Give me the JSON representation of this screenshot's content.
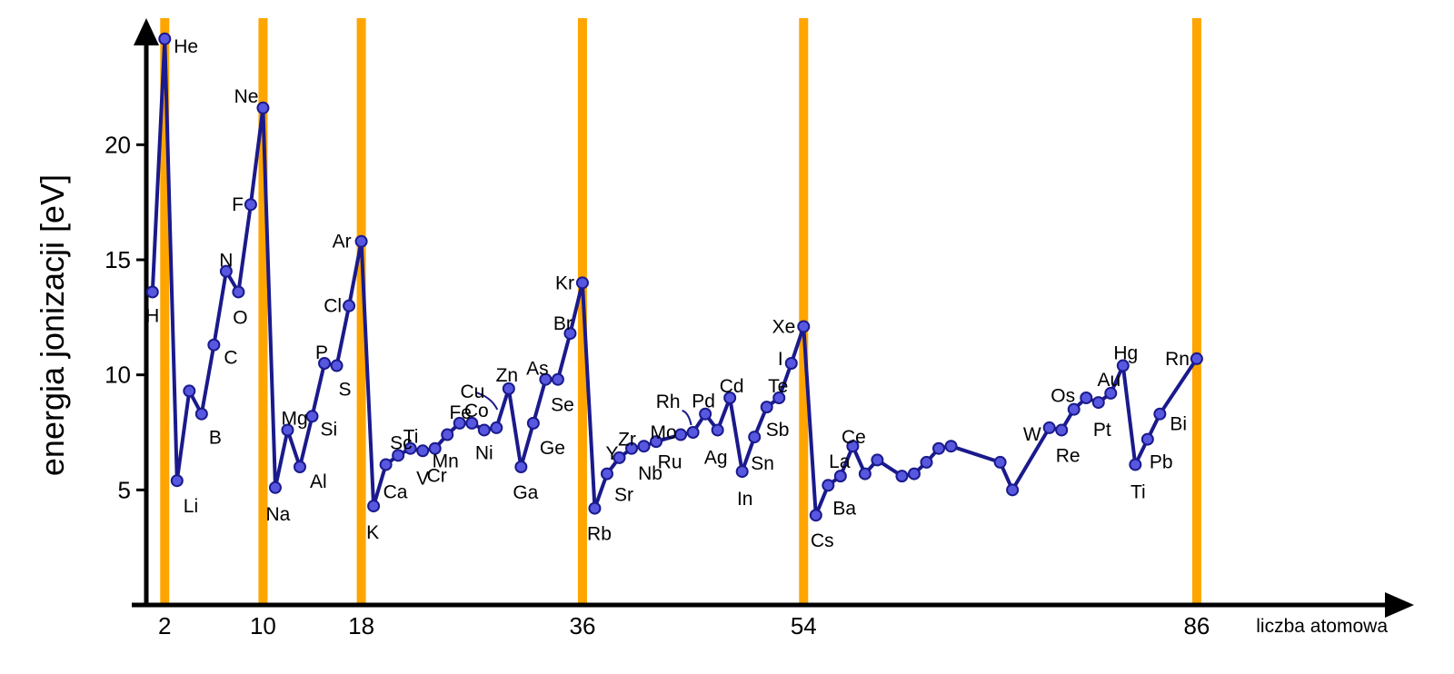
{
  "chart_data": {
    "type": "line",
    "title": "",
    "xlabel": "liczba atomowa",
    "ylabel": "energia jonizacji [eV]",
    "ylim": [
      0,
      25.5
    ],
    "xlim": [
      0.5,
      102.5
    ],
    "y_ticks": [
      "5",
      "10",
      "15",
      "20"
    ],
    "x_ticks": [
      "2",
      "10",
      "18",
      "36",
      "54",
      "86"
    ],
    "highlight_x": [
      2,
      10,
      18,
      36,
      54,
      86
    ],
    "highlight_color": "#ffa500",
    "line_color": "#1a1a8c",
    "marker_fill": "#5757e0",
    "series": [
      {
        "points": [
          {
            "x": 1,
            "y": 13.6,
            "label": "H"
          },
          {
            "x": 2,
            "y": 24.6,
            "label": "He"
          },
          {
            "x": 3,
            "y": 5.4,
            "label": "Li"
          },
          {
            "x": 4,
            "y": 9.3,
            "label": ""
          },
          {
            "x": 5,
            "y": 8.3,
            "label": "B"
          },
          {
            "x": 6,
            "y": 11.3,
            "label": "C"
          },
          {
            "x": 7,
            "y": 14.5,
            "label": "N"
          },
          {
            "x": 8,
            "y": 13.6,
            "label": "O"
          },
          {
            "x": 9,
            "y": 17.4,
            "label": "F"
          },
          {
            "x": 10,
            "y": 21.6,
            "label": "Ne"
          },
          {
            "x": 11,
            "y": 5.1,
            "label": "Na"
          },
          {
            "x": 12,
            "y": 7.6,
            "label": "Mg"
          },
          {
            "x": 13,
            "y": 6.0,
            "label": "Al"
          },
          {
            "x": 14,
            "y": 8.2,
            "label": "Si"
          },
          {
            "x": 15,
            "y": 10.5,
            "label": "P"
          },
          {
            "x": 16,
            "y": 10.4,
            "label": "S"
          },
          {
            "x": 17,
            "y": 13.0,
            "label": "Cl"
          },
          {
            "x": 18,
            "y": 15.8,
            "label": "Ar"
          },
          {
            "x": 19,
            "y": 4.3,
            "label": "K"
          },
          {
            "x": 20,
            "y": 6.1,
            "label": "Ca"
          },
          {
            "x": 21,
            "y": 6.5,
            "label": "Sc"
          },
          {
            "x": 22,
            "y": 6.8,
            "label": "Ti"
          },
          {
            "x": 23,
            "y": 6.7,
            "label": "V"
          },
          {
            "x": 24,
            "y": 6.8,
            "label": "Cr"
          },
          {
            "x": 25,
            "y": 7.4,
            "label": "Mn"
          },
          {
            "x": 26,
            "y": 7.9,
            "label": "Fe"
          },
          {
            "x": 27,
            "y": 7.9,
            "label": "Co"
          },
          {
            "x": 28,
            "y": 7.6,
            "label": "Ni"
          },
          {
            "x": 29,
            "y": 7.7,
            "label": "Cu"
          },
          {
            "x": 30,
            "y": 9.4,
            "label": "Zn"
          },
          {
            "x": 31,
            "y": 6.0,
            "label": "Ga"
          },
          {
            "x": 32,
            "y": 7.9,
            "label": "Ge"
          },
          {
            "x": 33,
            "y": 9.8,
            "label": "As"
          },
          {
            "x": 34,
            "y": 9.8,
            "label": "Se"
          },
          {
            "x": 35,
            "y": 11.8,
            "label": "Br"
          },
          {
            "x": 36,
            "y": 14.0,
            "label": "Kr"
          },
          {
            "x": 37,
            "y": 4.2,
            "label": "Rb"
          },
          {
            "x": 38,
            "y": 5.7,
            "label": "Sr"
          },
          {
            "x": 39,
            "y": 6.4,
            "label": "Y"
          },
          {
            "x": 40,
            "y": 6.8,
            "label": "Zr"
          },
          {
            "x": 41,
            "y": 6.9,
            "label": "Nb"
          },
          {
            "x": 42,
            "y": 7.1,
            "label": "Mo"
          },
          {
            "x": 44,
            "y": 7.4,
            "label": "Ru"
          },
          {
            "x": 45,
            "y": 7.5,
            "label": "Rh"
          },
          {
            "x": 46,
            "y": 8.3,
            "label": "Pd"
          },
          {
            "x": 47,
            "y": 7.6,
            "label": "Ag"
          },
          {
            "x": 48,
            "y": 9.0,
            "label": "Cd"
          },
          {
            "x": 49,
            "y": 5.8,
            "label": "In"
          },
          {
            "x": 50,
            "y": 7.3,
            "label": "Sn"
          },
          {
            "x": 51,
            "y": 8.6,
            "label": "Sb"
          },
          {
            "x": 52,
            "y": 9.0,
            "label": "Te"
          },
          {
            "x": 53,
            "y": 10.5,
            "label": "I"
          },
          {
            "x": 54,
            "y": 12.1,
            "label": "Xe"
          },
          {
            "x": 55,
            "y": 3.9,
            "label": "Cs"
          },
          {
            "x": 56,
            "y": 5.2,
            "label": "Ba"
          },
          {
            "x": 57,
            "y": 5.6,
            "label": "La"
          },
          {
            "x": 58,
            "y": 6.9,
            "label": "Ce"
          },
          {
            "x": 59,
            "y": 5.7,
            "label": ""
          },
          {
            "x": 60,
            "y": 6.3,
            "label": ""
          },
          {
            "x": 62,
            "y": 5.6,
            "label": ""
          },
          {
            "x": 63,
            "y": 5.7,
            "label": ""
          },
          {
            "x": 64,
            "y": 6.2,
            "label": ""
          },
          {
            "x": 65,
            "y": 6.8,
            "label": ""
          },
          {
            "x": 66,
            "y": 6.9,
            "label": ""
          },
          {
            "x": 70,
            "y": 6.2,
            "label": ""
          },
          {
            "x": 71,
            "y": 5.0,
            "label": ""
          },
          {
            "x": 74,
            "y": 7.7,
            "label": "W"
          },
          {
            "x": 75,
            "y": 7.6,
            "label": "Re"
          },
          {
            "x": 76,
            "y": 8.5,
            "label": "Os"
          },
          {
            "x": 77,
            "y": 9.0,
            "label": ""
          },
          {
            "x": 78,
            "y": 8.8,
            "label": "Pt"
          },
          {
            "x": 79,
            "y": 9.2,
            "label": "Au"
          },
          {
            "x": 80,
            "y": 10.4,
            "label": "Hg"
          },
          {
            "x": 81,
            "y": 6.1,
            "label": "Ti"
          },
          {
            "x": 82,
            "y": 7.2,
            "label": "Pb"
          },
          {
            "x": 83,
            "y": 8.3,
            "label": "Bi"
          },
          {
            "x": 86,
            "y": 10.7,
            "label": "Rn"
          }
        ]
      }
    ]
  }
}
